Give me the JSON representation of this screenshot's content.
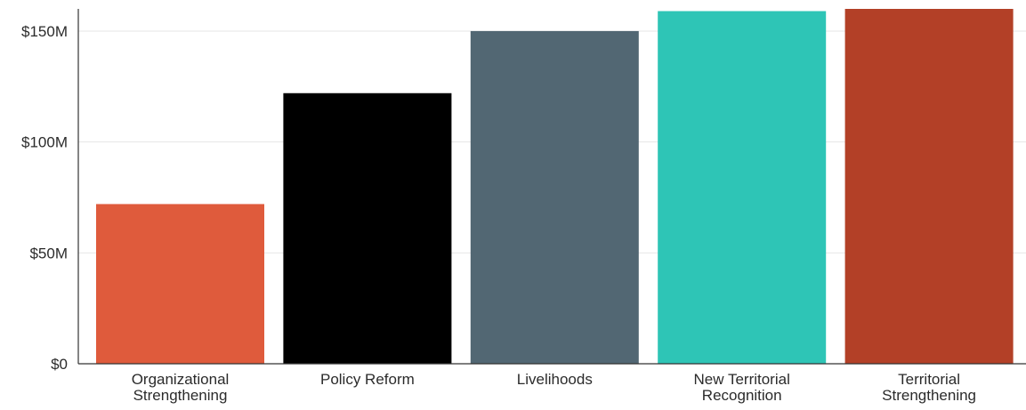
{
  "chart_data": {
    "type": "bar",
    "title": "",
    "xlabel": "",
    "ylabel": "",
    "categories": [
      [
        "Organizational",
        "Strengthening"
      ],
      [
        "Policy Reform"
      ],
      [
        "Livelihoods"
      ],
      [
        "New Territorial",
        "Recognition"
      ],
      [
        "Territorial",
        "Strengthening"
      ]
    ],
    "values": [
      72000000,
      122000000,
      150000000,
      159000000,
      160000000
    ],
    "colors": [
      "#df5b3c",
      "#000000",
      "#526773",
      "#2ec5b6",
      "#b34027"
    ],
    "ylim": [
      0,
      160000000
    ],
    "yticks": [
      {
        "value": 0,
        "label": "$0"
      },
      {
        "value": 50000000,
        "label": "$50M"
      },
      {
        "value": 100000000,
        "label": "$100M"
      },
      {
        "value": 150000000,
        "label": "$150M"
      }
    ],
    "grid": true,
    "legend": "none"
  }
}
